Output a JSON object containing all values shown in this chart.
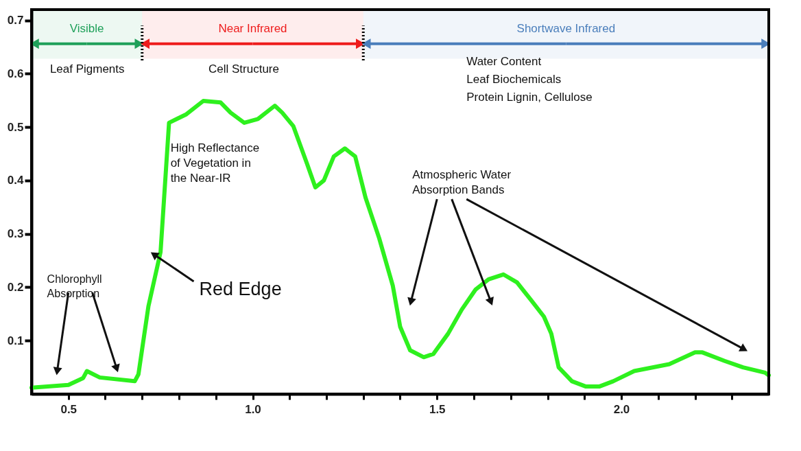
{
  "chart_data": {
    "type": "line",
    "x": [
      0.4,
      0.5,
      0.54,
      0.55,
      0.585,
      0.68,
      0.69,
      0.717,
      0.75,
      0.773,
      0.82,
      0.866,
      0.913,
      0.94,
      0.977,
      1.014,
      1.06,
      1.08,
      1.11,
      1.147,
      1.17,
      1.193,
      1.22,
      1.25,
      1.278,
      1.306,
      1.343,
      1.38,
      1.4,
      1.427,
      1.464,
      1.49,
      1.53,
      1.567,
      1.605,
      1.64,
      1.68,
      1.717,
      1.754,
      1.79,
      1.81,
      1.83,
      1.866,
      1.904,
      1.94,
      1.978,
      2.035,
      2.13,
      2.2,
      2.22,
      2.28,
      2.33,
      2.39,
      2.4
    ],
    "series": [
      {
        "color": "#2ef01e",
        "values": [
          0.012,
          0.017,
          0.03,
          0.043,
          0.031,
          0.024,
          0.037,
          0.164,
          0.266,
          0.508,
          0.524,
          0.549,
          0.546,
          0.527,
          0.508,
          0.515,
          0.54,
          0.527,
          0.502,
          0.432,
          0.387,
          0.4,
          0.445,
          0.46,
          0.445,
          0.368,
          0.292,
          0.203,
          0.126,
          0.082,
          0.069,
          0.075,
          0.113,
          0.158,
          0.196,
          0.215,
          0.224,
          0.209,
          0.177,
          0.145,
          0.113,
          0.05,
          0.024,
          0.014,
          0.014,
          0.024,
          0.043,
          0.056,
          0.078,
          0.078,
          0.062,
          0.05,
          0.04,
          0.035
        ]
      }
    ],
    "xlim": [
      0.4,
      2.4
    ],
    "ylim": [
      0,
      0.72
    ],
    "xticks": [
      {
        "value": 0.5,
        "label": "0.5"
      },
      {
        "value": 0.6,
        "label": null
      },
      {
        "value": 0.7,
        "label": null
      },
      {
        "value": 0.8,
        "label": null
      },
      {
        "value": 0.9,
        "label": null
      },
      {
        "value": 1.0,
        "label": "1.0"
      },
      {
        "value": 1.1,
        "label": null
      },
      {
        "value": 1.2,
        "label": null
      },
      {
        "value": 1.3,
        "label": null
      },
      {
        "value": 1.4,
        "label": null
      },
      {
        "value": 1.5,
        "label": "1.5"
      },
      {
        "value": 1.6,
        "label": null
      },
      {
        "value": 1.7,
        "label": null
      },
      {
        "value": 1.8,
        "label": null
      },
      {
        "value": 1.9,
        "label": null
      },
      {
        "value": 2.0,
        "label": "2.0"
      },
      {
        "value": 2.1,
        "label": null
      },
      {
        "value": 2.2,
        "label": null
      },
      {
        "value": 2.3,
        "label": null
      }
    ],
    "yticks": [
      0.1,
      0.2,
      0.3,
      0.4,
      0.5,
      0.6,
      0.7
    ],
    "bands": [
      {
        "axis": "x",
        "from": 0.4,
        "to": 0.7,
        "label": "Visible",
        "color": "#1fa05a"
      },
      {
        "axis": "x",
        "from": 0.7,
        "to": 1.3,
        "label": "Near Infrared",
        "color": "#ee1c1c"
      },
      {
        "axis": "x",
        "from": 1.3,
        "to": 2.4,
        "label": "Shortwave Infrared",
        "color": "#4a7ebb"
      }
    ],
    "ref_lines": [
      {
        "axis": "x",
        "value": 0.7,
        "line_style": "dotted",
        "color": "#000000"
      },
      {
        "axis": "x",
        "value": 1.3,
        "line_style": "dotted",
        "color": "#000000"
      }
    ],
    "annotations": [
      "Leaf Pigments",
      "Cell Structure",
      "Water Content",
      "Leaf Biochemicals",
      "Protein Lignin, Cellulose",
      "High Reflectance\nof Vegetation in\nthe Near-IR",
      "Chlorophyll\nAbsorption",
      {
        "text": "Red Edge",
        "x": 0.735,
        "y": 0.26
      },
      "Atmospheric Water\nAbsorption Bands"
    ],
    "grid": false,
    "marker": "none",
    "line_style": "solid"
  }
}
